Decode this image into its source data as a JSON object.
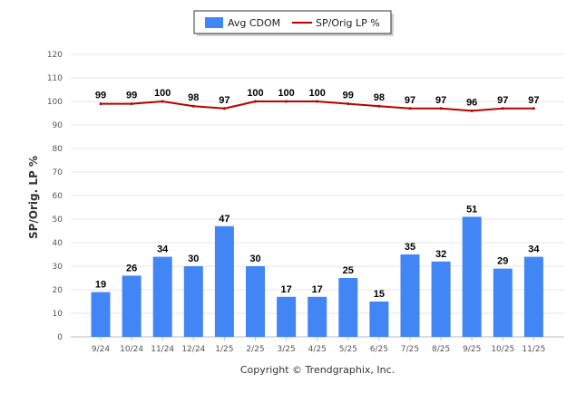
{
  "chart_data": {
    "type": "bar",
    "title": "",
    "xlabel": "",
    "ylabel": "SP/Orig. LP %",
    "ylim": [
      0,
      120
    ],
    "yticks": [
      0,
      10,
      20,
      30,
      40,
      50,
      60,
      70,
      80,
      90,
      100,
      110,
      120
    ],
    "grid": true,
    "legend_position": "top-center",
    "categories": [
      "9/24",
      "10/24",
      "11/24",
      "12/24",
      "1/25",
      "2/25",
      "3/25",
      "4/25",
      "5/25",
      "6/25",
      "7/25",
      "8/25",
      "9/25",
      "10/25",
      "11/25"
    ],
    "series": [
      {
        "name": "Avg CDOM",
        "type": "bar",
        "color": "#4285f4",
        "values": [
          19,
          26,
          34,
          30,
          47,
          30,
          17,
          17,
          25,
          15,
          35,
          32,
          51,
          29,
          34
        ]
      },
      {
        "name": "SP/Orig LP %",
        "type": "line",
        "color": "#b80000",
        "values": [
          99,
          99,
          100,
          98,
          97,
          100,
          100,
          100,
          99,
          98,
          97,
          97,
          96,
          97,
          97
        ]
      }
    ]
  },
  "footer": {
    "copyright": "Copyright © Trendgraphix, Inc."
  }
}
